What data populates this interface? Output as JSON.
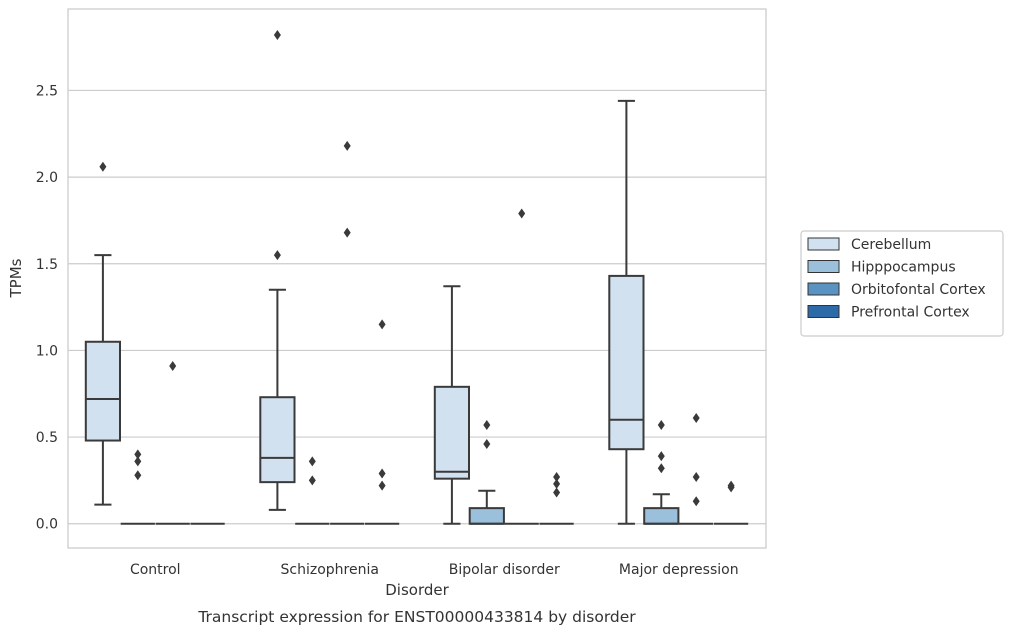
{
  "chart_data": {
    "type": "box",
    "xlabel": "Disorder",
    "ylabel": "TPMs",
    "caption": "Transcript expression for ENST00000433814 by disorder",
    "ylim": [
      -0.14,
      2.97
    ],
    "yticks": [
      "0.0",
      "0.5",
      "1.0",
      "1.5",
      "2.0",
      "2.5"
    ],
    "grid": "horizontal",
    "legend_position": "right",
    "categories": [
      "Control",
      "Schizophrenia",
      "Bipolar disorder",
      "Major depression"
    ],
    "series": [
      {
        "name": "Cerebellum",
        "color": "#d2e1f0",
        "boxes": [
          {
            "q1": 0.48,
            "median": 0.72,
            "q3": 1.05,
            "whisker_low": 0.11,
            "whisker_high": 1.55,
            "outliers": [
              2.06
            ]
          },
          {
            "q1": 0.24,
            "median": 0.38,
            "q3": 0.73,
            "whisker_low": 0.08,
            "whisker_high": 1.35,
            "outliers": [
              1.55,
              2.82
            ]
          },
          {
            "q1": 0.26,
            "median": 0.3,
            "q3": 0.79,
            "whisker_low": 0.0,
            "whisker_high": 1.37,
            "outliers": []
          },
          {
            "q1": 0.43,
            "median": 0.6,
            "q3": 1.43,
            "whisker_low": 0.0,
            "whisker_high": 2.44,
            "outliers": []
          }
        ]
      },
      {
        "name": "Hipppocampus",
        "color": "#9ac0db",
        "boxes": [
          {
            "q1": 0.0,
            "median": 0.0,
            "q3": 0.0,
            "whisker_low": 0.0,
            "whisker_high": 0.0,
            "outliers": [
              0.28,
              0.36,
              0.4
            ]
          },
          {
            "q1": 0.0,
            "median": 0.0,
            "q3": 0.0,
            "whisker_low": 0.0,
            "whisker_high": 0.0,
            "outliers": [
              0.25,
              0.36
            ]
          },
          {
            "q1": 0.0,
            "median": 0.0,
            "q3": 0.09,
            "whisker_low": 0.0,
            "whisker_high": 0.19,
            "outliers": [
              0.46,
              0.57
            ]
          },
          {
            "q1": 0.0,
            "median": 0.0,
            "q3": 0.09,
            "whisker_low": 0.0,
            "whisker_high": 0.17,
            "outliers": [
              0.32,
              0.39,
              0.57
            ]
          }
        ]
      },
      {
        "name": "Orbitofontal Cortex",
        "color": "#5a93c2",
        "boxes": [
          {
            "q1": 0.0,
            "median": 0.0,
            "q3": 0.0,
            "whisker_low": 0.0,
            "whisker_high": 0.0,
            "outliers": [
              0.91
            ]
          },
          {
            "q1": 0.0,
            "median": 0.0,
            "q3": 0.0,
            "whisker_low": 0.0,
            "whisker_high": 0.0,
            "outliers": [
              1.68,
              2.18
            ]
          },
          {
            "q1": 0.0,
            "median": 0.0,
            "q3": 0.0,
            "whisker_low": 0.0,
            "whisker_high": 0.0,
            "outliers": [
              1.79
            ]
          },
          {
            "q1": 0.0,
            "median": 0.0,
            "q3": 0.0,
            "whisker_low": 0.0,
            "whisker_high": 0.0,
            "outliers": [
              0.13,
              0.27,
              0.61
            ]
          }
        ]
      },
      {
        "name": "Prefrontal Cortex",
        "color": "#2c6aa8",
        "boxes": [
          {
            "q1": 0.0,
            "median": 0.0,
            "q3": 0.0,
            "whisker_low": 0.0,
            "whisker_high": 0.0,
            "outliers": []
          },
          {
            "q1": 0.0,
            "median": 0.0,
            "q3": 0.0,
            "whisker_low": 0.0,
            "whisker_high": 0.0,
            "outliers": [
              0.22,
              0.29,
              1.15
            ]
          },
          {
            "q1": 0.0,
            "median": 0.0,
            "q3": 0.0,
            "whisker_low": 0.0,
            "whisker_high": 0.0,
            "outliers": [
              0.18,
              0.23,
              0.27
            ]
          },
          {
            "q1": 0.0,
            "median": 0.0,
            "q3": 0.0,
            "whisker_low": 0.0,
            "whisker_high": 0.0,
            "outliers": [
              0.21,
              0.22
            ]
          }
        ]
      }
    ]
  }
}
